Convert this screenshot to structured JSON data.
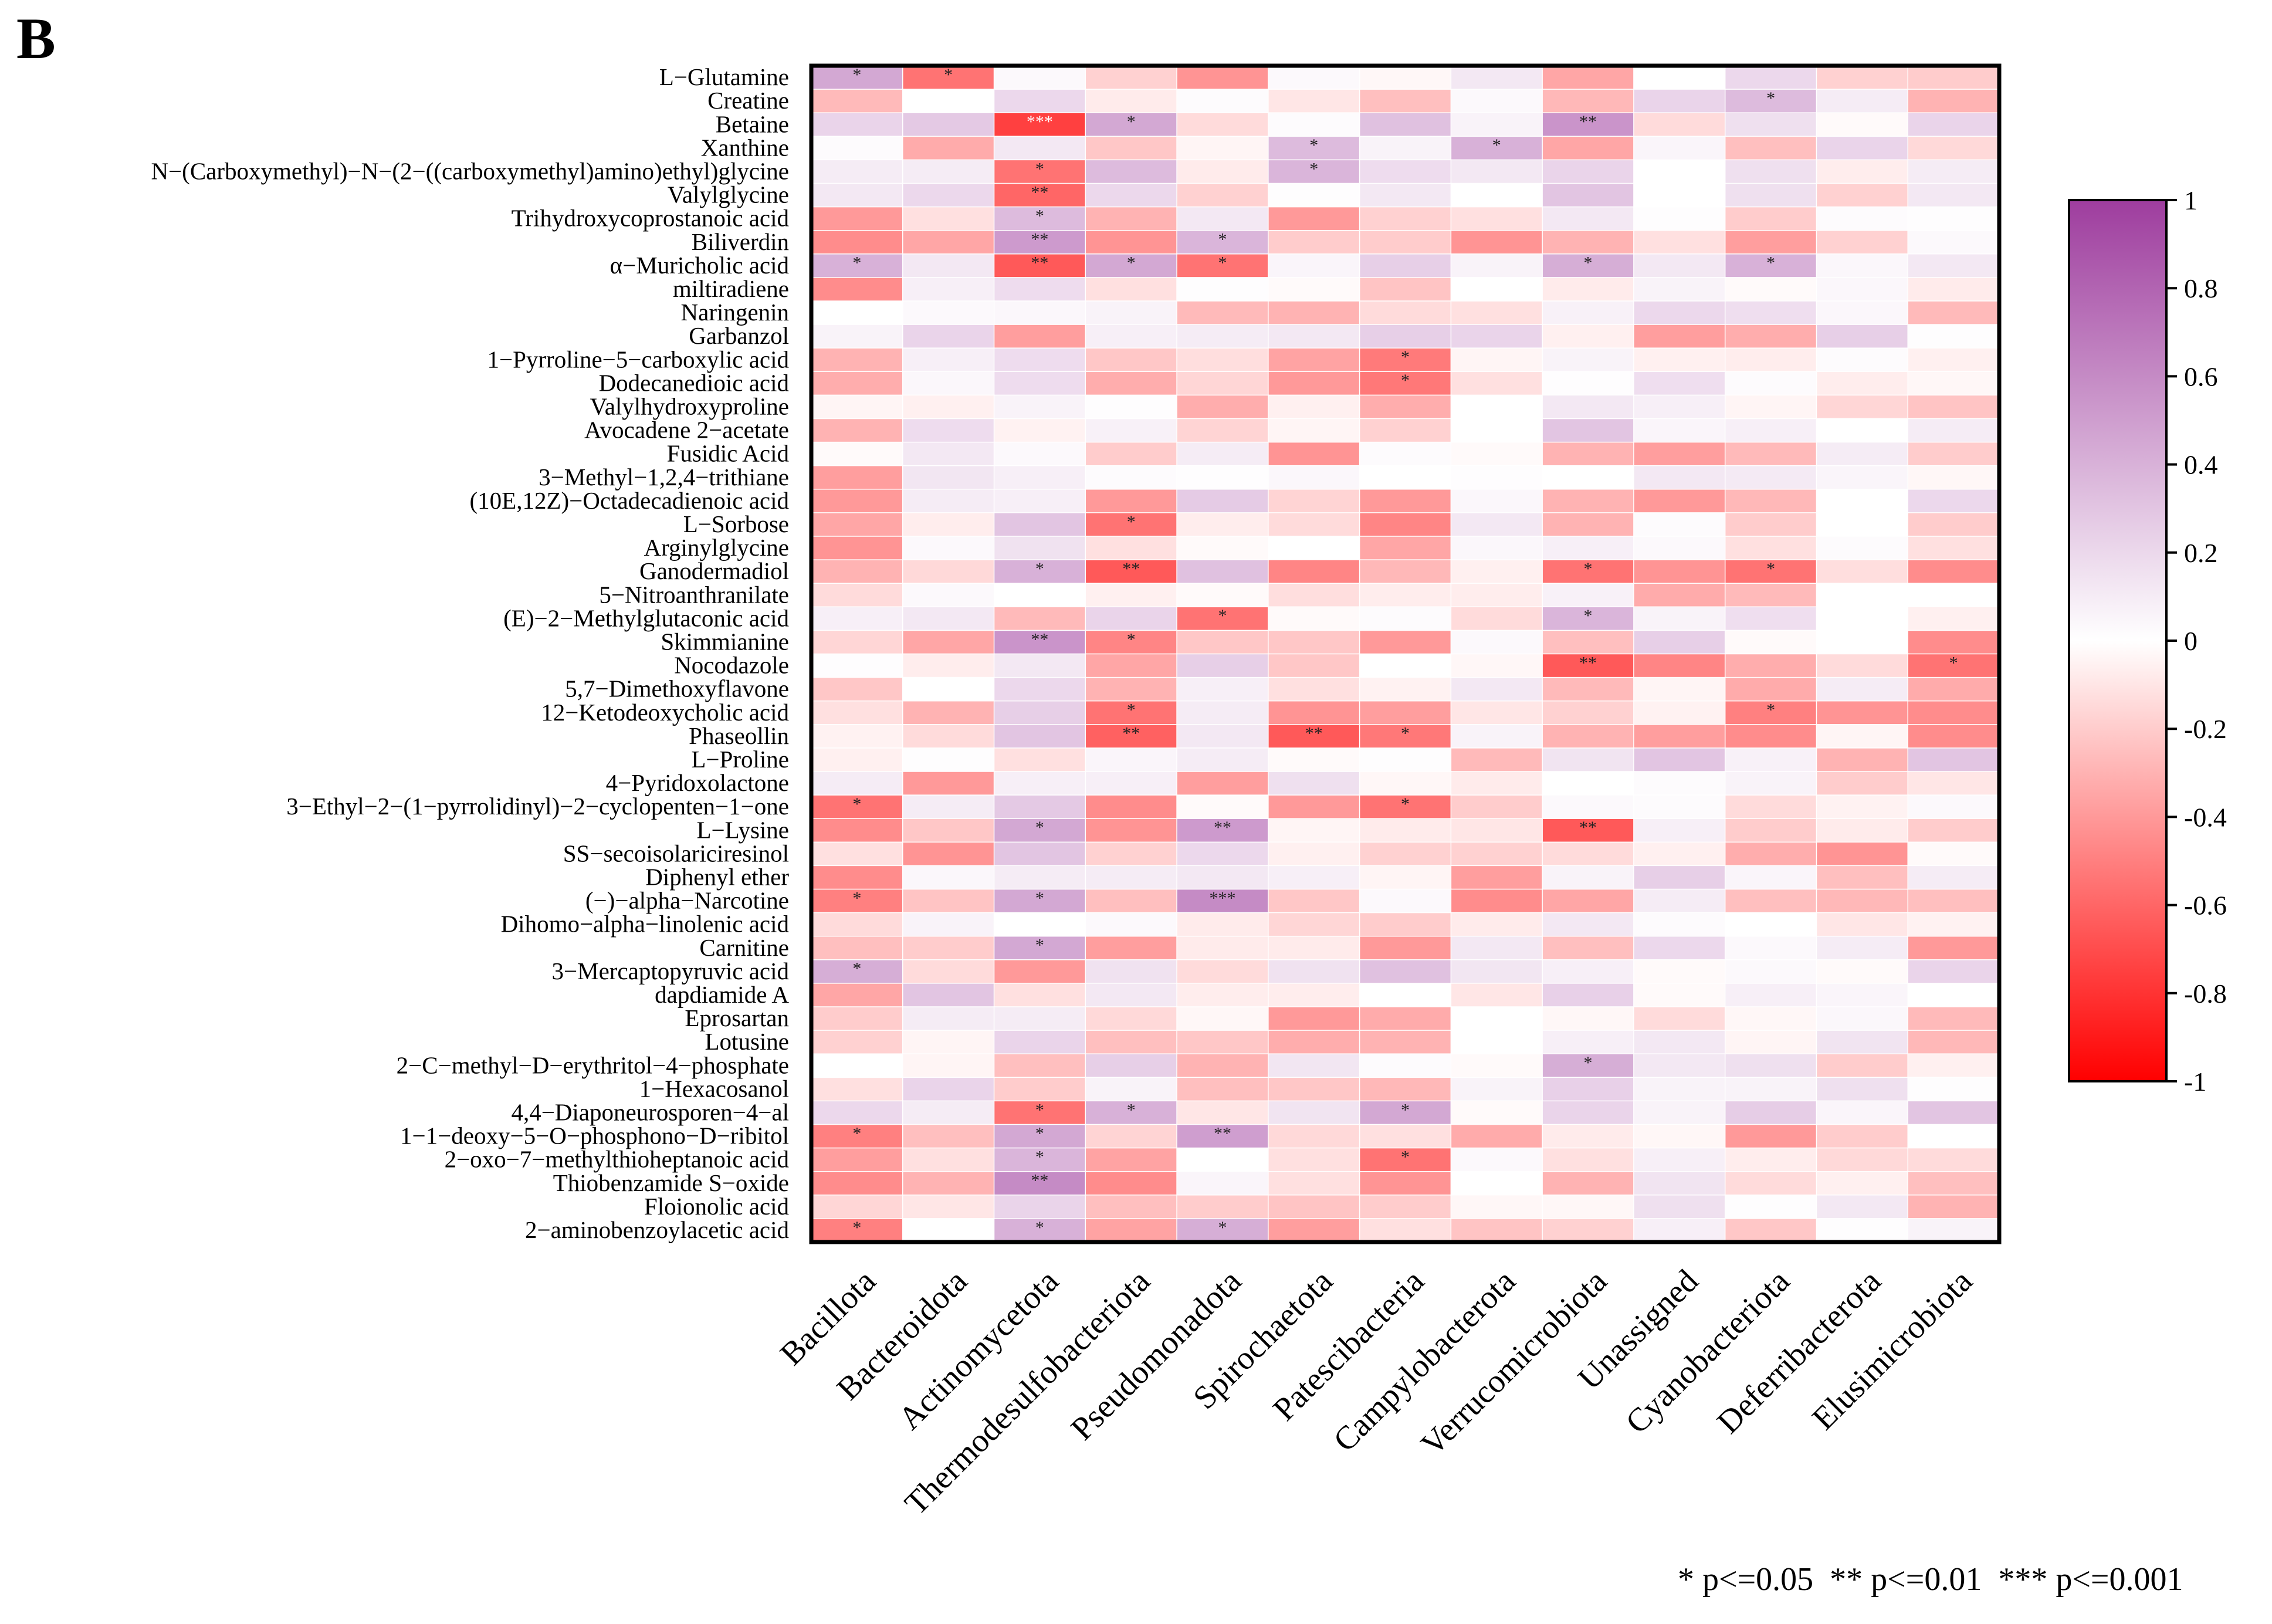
{
  "panel_label": "B",
  "legend_text": "* p<=0.05  ** p<=0.01  *** p<=0.001",
  "chart_data": {
    "type": "heatmap",
    "title": "",
    "xlabel": "",
    "ylabel": "",
    "value_range": [
      -1,
      1
    ],
    "colorscale": {
      "low": "#FF0000",
      "mid": "#FFFFFF",
      "high": "#9E3D9E"
    },
    "colorbar_ticks": [
      "1",
      "0.8",
      "0.6",
      "0.4",
      "0.2",
      "0",
      "-0.2",
      "-0.4",
      "-0.6",
      "-0.8",
      "-1"
    ],
    "colorbar_tick_values": [
      1,
      0.8,
      0.6,
      0.4,
      0.2,
      0,
      -0.2,
      -0.4,
      -0.6,
      -0.8,
      -1
    ],
    "columns": [
      "Bacillota",
      "Bacteroidota",
      "Actinomycetota",
      "Thermodesulfobacteriota",
      "Pseudomonadota",
      "Spirochaetota",
      "Patescibacteria",
      "Campylobacterota",
      "Verrucomicrobiota",
      "Unassigned",
      "Cyanobacteriota",
      "Deferribacterota",
      "Elusimicrobiota"
    ],
    "rows": [
      "L−Glutamine",
      "Creatine",
      "Betaine",
      "Xanthine",
      "N−(Carboxymethyl)−N−(2−((carboxymethyl)amino)ethyl)glycine",
      "Valylglycine",
      "Trihydroxycoprostanoic acid",
      "Biliverdin",
      "α−Muricholic acid",
      "miltiradiene",
      "Naringenin",
      "Garbanzol",
      "1−Pyrroline−5−carboxylic acid",
      "Dodecanedioic acid",
      "Valylhydroxyproline",
      "Avocadene 2−acetate",
      "Fusidic Acid",
      "3−Methyl−1,2,4−trithiane",
      "(10E,12Z)−Octadecadienoic acid",
      "L−Sorbose",
      "Arginylglycine",
      "Ganodermadiol",
      "5−Nitroanthranilate",
      "(E)−2−Methylglutaconic acid",
      "Skimmianine",
      "Nocodazole",
      "5,7−Dimethoxyflavone",
      "12−Ketodeoxycholic acid",
      "Phaseollin",
      "L−Proline",
      "4−Pyridoxolactone",
      "3−Ethyl−2−(1−pyrrolidinyl)−2−cyclopenten−1−one",
      "L−Lysine",
      "SS−secoisolariciresinol",
      "Diphenyl ether",
      "(−)−alpha−Narcotine",
      "Dihomo−alpha−linolenic acid",
      "Carnitine",
      "3−Mercaptopyruvic acid",
      "dapdiamide A",
      "Eprosartan",
      "Lotusine",
      "2−C−methyl−D−erythritol−4−phosphate",
      "1−Hexacosanol",
      "4,4−Diaponeurosporen−4−al",
      "1−1−deoxy−5−O−phosphono−D−ribitol",
      "2−oxo−7−methylthioheptanoic acid",
      "Thiobenzamide S−oxide",
      "Floionolic acid",
      "2−aminobenzoylacetic acid"
    ],
    "values": [
      [
        0.45,
        -0.55,
        0.03,
        -0.18,
        -0.42,
        0.03,
        -0.03,
        0.12,
        -0.35,
        0,
        0.2,
        -0.18,
        -0.2
      ],
      [
        -0.27,
        0,
        0.2,
        -0.08,
        0.02,
        -0.1,
        -0.25,
        0.03,
        -0.28,
        0.22,
        0.35,
        0.1,
        -0.3
      ],
      [
        0.22,
        0.28,
        -0.75,
        0.45,
        -0.14,
        0.02,
        0.32,
        0.06,
        0.55,
        -0.14,
        0.16,
        -0.02,
        0.22
      ],
      [
        0.02,
        -0.33,
        0.12,
        -0.22,
        -0.04,
        0.35,
        0.06,
        0.4,
        -0.35,
        0.05,
        -0.25,
        0.22,
        -0.15
      ],
      [
        0.1,
        0.1,
        -0.55,
        0.35,
        -0.08,
        0.38,
        0.18,
        0.12,
        0.22,
        0,
        0.16,
        -0.07,
        0.1
      ],
      [
        0.12,
        0.2,
        -0.6,
        0.2,
        -0.18,
        0.01,
        0.12,
        0,
        0.3,
        0,
        0.16,
        -0.18,
        0.12
      ],
      [
        -0.4,
        -0.12,
        0.35,
        -0.3,
        0.12,
        -0.4,
        -0.18,
        -0.12,
        0.12,
        0.01,
        -0.2,
        0.02,
        0.01
      ],
      [
        -0.45,
        -0.35,
        0.52,
        -0.42,
        0.38,
        -0.2,
        -0.2,
        -0.42,
        -0.3,
        -0.12,
        -0.38,
        -0.18,
        0.03
      ],
      [
        0.4,
        0.12,
        -0.65,
        0.45,
        -0.55,
        0.05,
        0.25,
        0.06,
        0.42,
        0.12,
        0.4,
        0.04,
        0.12
      ],
      [
        -0.45,
        0.08,
        0.18,
        -0.12,
        0.01,
        -0.02,
        -0.23,
        0,
        -0.08,
        0.06,
        -0.02,
        0.04,
        -0.08
      ],
      [
        0,
        0.03,
        0.04,
        0.06,
        -0.27,
        -0.3,
        -0.14,
        -0.12,
        0.07,
        0.2,
        0.17,
        0.04,
        -0.27
      ],
      [
        0.06,
        0.22,
        -0.38,
        0.08,
        0.1,
        0.12,
        0.25,
        0.22,
        -0.06,
        -0.38,
        -0.32,
        0.25,
        0.01
      ],
      [
        -0.3,
        0.08,
        0.18,
        -0.22,
        -0.13,
        -0.36,
        -0.52,
        -0.04,
        0.06,
        -0.06,
        -0.07,
        0.02,
        -0.06
      ],
      [
        -0.32,
        0.04,
        0.18,
        -0.32,
        -0.16,
        -0.4,
        -0.53,
        -0.12,
        0.01,
        0.17,
        0.02,
        -0.07,
        -0.03
      ],
      [
        -0.04,
        -0.06,
        0.06,
        0.01,
        -0.32,
        -0.06,
        -0.32,
        0,
        0.12,
        0.08,
        -0.04,
        -0.16,
        -0.23
      ],
      [
        -0.3,
        0.18,
        -0.05,
        0.07,
        -0.17,
        -0.04,
        -0.18,
        0,
        0.3,
        0.05,
        0.08,
        0,
        0.1
      ],
      [
        -0.02,
        0.12,
        0.03,
        -0.2,
        0.1,
        -0.42,
        0.02,
        -0.02,
        -0.3,
        -0.38,
        -0.27,
        0.1,
        -0.2
      ],
      [
        -0.38,
        0.13,
        0.08,
        0.02,
        0.01,
        0.04,
        0,
        0.01,
        0,
        0.12,
        0.11,
        0.05,
        -0.03
      ],
      [
        -0.4,
        0.1,
        0.08,
        -0.4,
        0.27,
        -0.17,
        -0.4,
        0.04,
        -0.3,
        -0.4,
        -0.28,
        0,
        0.2
      ],
      [
        -0.35,
        -0.07,
        0.3,
        -0.55,
        -0.07,
        -0.14,
        -0.48,
        0.12,
        -0.3,
        0.02,
        -0.2,
        0,
        -0.2
      ],
      [
        -0.42,
        0.03,
        0.15,
        -0.12,
        -0.02,
        0,
        -0.35,
        0.04,
        0.08,
        0.03,
        -0.12,
        0.02,
        -0.12
      ],
      [
        -0.3,
        -0.15,
        0.4,
        -0.65,
        0.32,
        -0.48,
        -0.28,
        -0.06,
        -0.55,
        -0.42,
        -0.55,
        -0.13,
        -0.45
      ],
      [
        -0.14,
        0.03,
        0,
        -0.06,
        -0.02,
        -0.13,
        -0.07,
        -0.07,
        0.07,
        -0.33,
        -0.27,
        0,
        0
      ],
      [
        0.08,
        0.12,
        -0.27,
        0.22,
        -0.55,
        -0.02,
        0.02,
        -0.14,
        0.38,
        0.06,
        0.17,
        0,
        -0.06
      ],
      [
        -0.16,
        -0.35,
        0.55,
        -0.48,
        -0.22,
        -0.22,
        -0.4,
        0.03,
        -0.25,
        0.25,
        -0.02,
        0,
        -0.45
      ],
      [
        0.01,
        -0.07,
        0.12,
        -0.35,
        0.25,
        -0.22,
        0,
        -0.03,
        -0.65,
        -0.48,
        -0.32,
        -0.14,
        -0.55
      ],
      [
        -0.22,
        0,
        0.2,
        -0.3,
        0.08,
        -0.12,
        -0.05,
        0.12,
        -0.27,
        -0.04,
        -0.33,
        0.1,
        -0.33
      ],
      [
        -0.12,
        -0.3,
        0.25,
        -0.55,
        0.1,
        -0.42,
        -0.38,
        -0.1,
        -0.18,
        -0.05,
        -0.5,
        -0.42,
        -0.45
      ],
      [
        -0.05,
        -0.14,
        0.3,
        -0.62,
        0.12,
        -0.65,
        -0.53,
        0.06,
        -0.3,
        -0.38,
        -0.45,
        -0.04,
        -0.45
      ],
      [
        -0.06,
        0.01,
        -0.12,
        0.05,
        0.1,
        -0.02,
        0.01,
        -0.27,
        0.14,
        0.3,
        0.07,
        -0.3,
        0.3
      ],
      [
        0.1,
        -0.4,
        0.08,
        0.08,
        -0.38,
        0.16,
        -0.03,
        -0.08,
        0,
        0.02,
        0.06,
        -0.2,
        -0.1
      ],
      [
        -0.55,
        0.1,
        0.28,
        -0.45,
        -0.02,
        -0.4,
        -0.55,
        -0.2,
        0.03,
        0.02,
        -0.14,
        -0.05,
        0.03
      ],
      [
        -0.45,
        -0.22,
        0.45,
        -0.42,
        0.52,
        -0.04,
        -0.08,
        -0.1,
        -0.65,
        0.08,
        -0.2,
        -0.08,
        -0.2
      ],
      [
        -0.12,
        -0.42,
        0.3,
        -0.18,
        0.2,
        -0.06,
        -0.18,
        -0.18,
        -0.14,
        -0.06,
        -0.32,
        -0.42,
        -0.02
      ],
      [
        -0.45,
        0.04,
        0.1,
        0.1,
        0.12,
        0.08,
        -0.04,
        -0.38,
        0.06,
        0.25,
        0.05,
        -0.25,
        0.1
      ],
      [
        -0.5,
        -0.23,
        0.45,
        -0.25,
        0.6,
        -0.22,
        0.03,
        -0.45,
        -0.35,
        0.1,
        -0.25,
        -0.28,
        -0.25
      ],
      [
        -0.14,
        0.06,
        0,
        0.03,
        -0.08,
        -0.16,
        -0.2,
        -0.08,
        0.12,
        0.02,
        0,
        -0.1,
        -0.05
      ],
      [
        -0.25,
        -0.2,
        0.45,
        -0.38,
        -0.08,
        -0.08,
        -0.4,
        0.12,
        -0.25,
        0.2,
        0.03,
        0.1,
        -0.4
      ],
      [
        0.42,
        -0.14,
        -0.4,
        0.15,
        -0.14,
        0.15,
        0.32,
        0.13,
        0.08,
        -0.02,
        0.03,
        -0.02,
        0.22
      ],
      [
        -0.35,
        0.3,
        -0.12,
        0.12,
        -0.07,
        -0.07,
        0,
        -0.1,
        0.24,
        -0.02,
        0.08,
        0.05,
        0
      ],
      [
        -0.2,
        0.1,
        0.1,
        -0.15,
        -0.03,
        -0.4,
        -0.33,
        0,
        -0.03,
        -0.14,
        -0.03,
        0.04,
        -0.27
      ],
      [
        -0.18,
        -0.04,
        0.22,
        -0.25,
        -0.22,
        -0.32,
        -0.3,
        0,
        0.08,
        0.12,
        -0.04,
        0.14,
        -0.28
      ],
      [
        0,
        -0.04,
        -0.25,
        0.25,
        -0.3,
        0.13,
        0.02,
        -0.02,
        0.42,
        0.12,
        0.16,
        -0.2,
        -0.06
      ],
      [
        -0.12,
        0.22,
        -0.2,
        0.06,
        -0.25,
        -0.22,
        -0.28,
        0.06,
        0.24,
        0.06,
        0.06,
        0.16,
        0.01
      ],
      [
        0.2,
        0.1,
        -0.55,
        0.4,
        -0.1,
        0.14,
        0.45,
        -0.02,
        0.22,
        0.06,
        0.26,
        0.05,
        0.3
      ],
      [
        -0.5,
        -0.25,
        0.45,
        -0.17,
        0.5,
        -0.15,
        -0.12,
        -0.33,
        -0.08,
        -0.03,
        -0.4,
        -0.2,
        0
      ],
      [
        -0.38,
        -0.12,
        0.38,
        -0.36,
        0,
        -0.12,
        -0.55,
        0.03,
        -0.12,
        0.08,
        -0.07,
        -0.15,
        -0.14
      ],
      [
        -0.45,
        -0.3,
        0.6,
        -0.45,
        0.05,
        -0.12,
        -0.42,
        0,
        -0.3,
        0.14,
        -0.14,
        -0.06,
        -0.25
      ],
      [
        -0.16,
        -0.1,
        0.22,
        -0.25,
        -0.2,
        -0.23,
        -0.2,
        -0.03,
        -0.03,
        0.16,
        0.01,
        0.12,
        -0.3
      ],
      [
        -0.5,
        0,
        0.4,
        -0.36,
        0.42,
        -0.38,
        -0.12,
        -0.23,
        -0.18,
        0.08,
        -0.22,
        0.01,
        0.06
      ]
    ],
    "significance": [
      {
        "0": "*",
        "1": "*"
      },
      {
        "10": "*"
      },
      {
        "2": "***",
        "3": "*",
        "8": "**"
      },
      {
        "5": "*",
        "7": "*"
      },
      {
        "2": "*",
        "5": "*"
      },
      {
        "2": "**"
      },
      {
        "2": "*"
      },
      {
        "2": "**",
        "4": "*"
      },
      {
        "0": "*",
        "2": "**",
        "3": "*",
        "4": "*",
        "8": "*",
        "10": "*"
      },
      {},
      {},
      {},
      {
        "6": "*"
      },
      {
        "6": "*"
      },
      {},
      {},
      {},
      {},
      {},
      {
        "3": "*"
      },
      {},
      {
        "2": "*",
        "3": "**",
        "8": "*",
        "10": "*"
      },
      {},
      {
        "4": "*",
        "8": "*"
      },
      {
        "2": "**",
        "3": "*"
      },
      {
        "8": "**",
        "12": "*"
      },
      {},
      {
        "3": "*",
        "10": "*"
      },
      {
        "3": "**",
        "5": "**",
        "6": "*"
      },
      {},
      {},
      {
        "0": "*",
        "6": "*"
      },
      {
        "2": "*",
        "4": "**",
        "8": "**"
      },
      {},
      {},
      {
        "0": "*",
        "2": "*",
        "4": "***"
      },
      {},
      {
        "2": "*"
      },
      {
        "0": "*"
      },
      {},
      {},
      {},
      {
        "8": "*"
      },
      {},
      {
        "2": "*",
        "3": "*",
        "6": "*"
      },
      {
        "0": "*",
        "2": "*",
        "4": "**"
      },
      {
        "2": "*",
        "6": "*"
      },
      {
        "2": "**"
      },
      {},
      {
        "0": "*",
        "2": "*",
        "4": "*"
      }
    ]
  }
}
